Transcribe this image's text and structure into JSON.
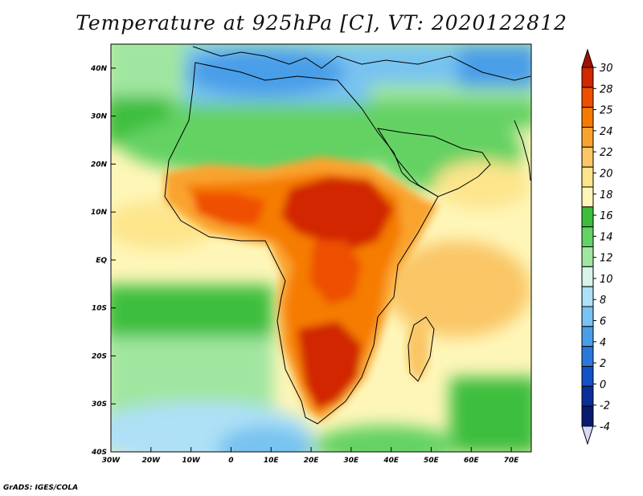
{
  "title": "Temperature at 925hPa [C], VT: 2020122812",
  "credit": "GrADS: IGES/COLA",
  "map": {
    "region": "Africa",
    "variable": "temperature",
    "units": "C",
    "lon_range": [
      -30,
      75
    ],
    "lat_range": [
      -40,
      45
    ],
    "lat_ticks": [
      {
        "value": 40,
        "label": "40N"
      },
      {
        "value": 30,
        "label": "30N"
      },
      {
        "value": 20,
        "label": "20N"
      },
      {
        "value": 10,
        "label": "10N"
      },
      {
        "value": 0,
        "label": "EQ"
      },
      {
        "value": -10,
        "label": "10S"
      },
      {
        "value": -20,
        "label": "20S"
      },
      {
        "value": -30,
        "label": "30S"
      },
      {
        "value": -40,
        "label": "40S"
      }
    ],
    "lon_ticks": [
      {
        "value": -30,
        "label": "30W"
      },
      {
        "value": -20,
        "label": "20W"
      },
      {
        "value": -10,
        "label": "10W"
      },
      {
        "value": 0,
        "label": "0"
      },
      {
        "value": 10,
        "label": "10E"
      },
      {
        "value": 20,
        "label": "20E"
      },
      {
        "value": 30,
        "label": "30E"
      },
      {
        "value": 40,
        "label": "40E"
      },
      {
        "value": 50,
        "label": "50E"
      },
      {
        "value": 60,
        "label": "60E"
      },
      {
        "value": 70,
        "label": "70E"
      }
    ]
  },
  "colorbar": {
    "labels": [
      "30",
      "28",
      "25",
      "24",
      "22",
      "20",
      "18",
      "16",
      "14",
      "12",
      "10",
      "8",
      "6",
      "4",
      "2",
      "0",
      "-2",
      "-4"
    ],
    "colors": [
      "#a50f00",
      "#d12800",
      "#ee5000",
      "#f57b00",
      "#f9a32e",
      "#fac666",
      "#fde58c",
      "#fef6b8",
      "#3cbe3c",
      "#64d264",
      "#a0e6a0",
      "#d6f4ea",
      "#aee0f6",
      "#78c3f0",
      "#4a9ee8",
      "#2a78dc",
      "#1450c8",
      "#0a2f9a",
      "#081a70",
      "#d8d8f8"
    ]
  }
}
